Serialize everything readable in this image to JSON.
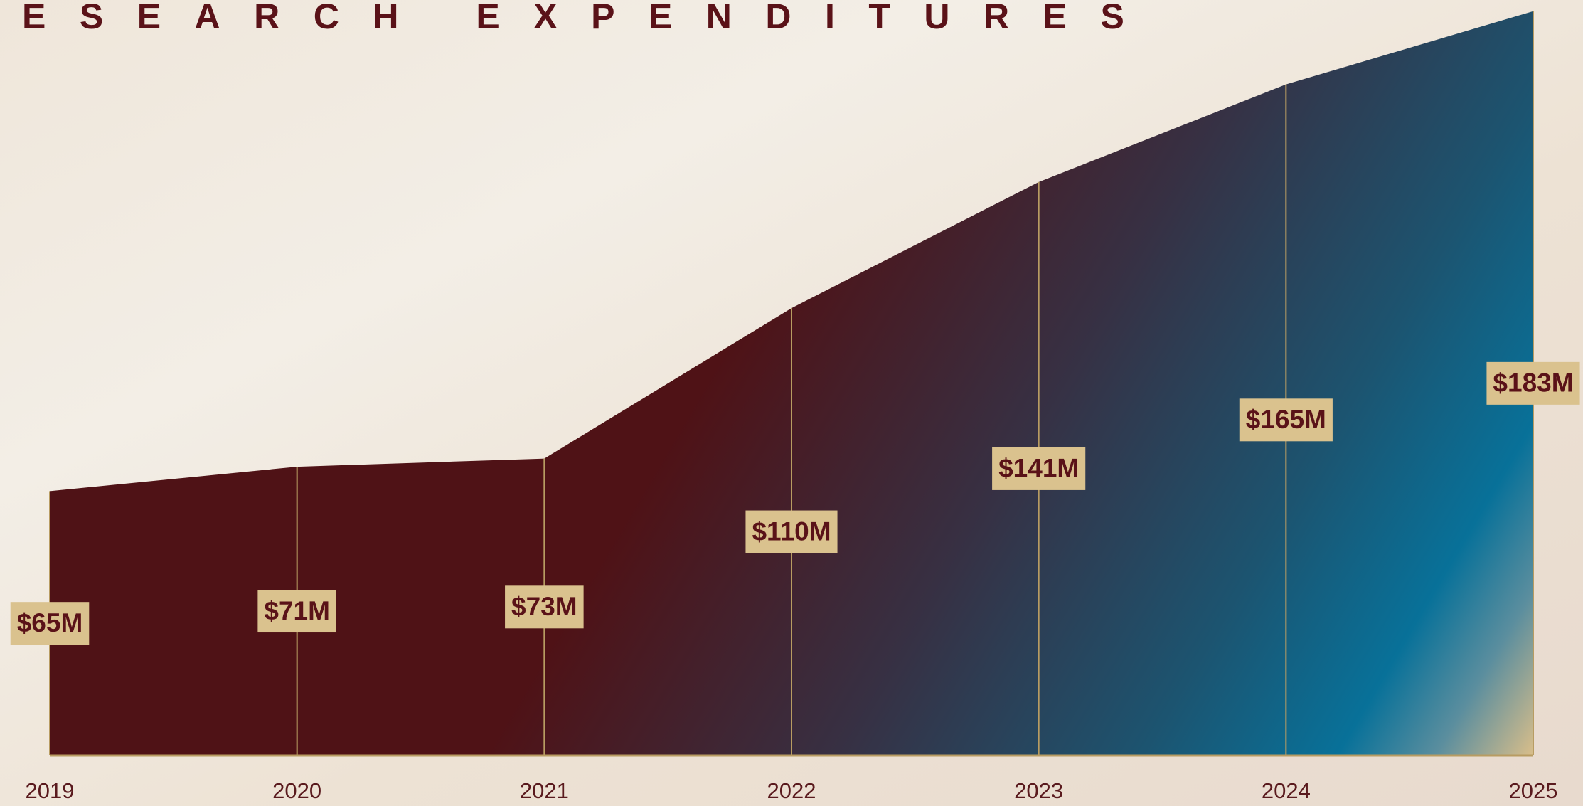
{
  "chart_data": {
    "type": "area",
    "title": "ESEARCH EXPENDITURES",
    "categories": [
      "2019",
      "2020",
      "2021",
      "2022",
      "2023",
      "2024",
      "2025"
    ],
    "values": [
      65,
      71,
      73,
      110,
      141,
      165,
      183
    ],
    "value_labels": [
      "$65M",
      "$71M",
      "$73M",
      "$110M",
      "$141M",
      "$165M",
      "$183M"
    ],
    "ylim": [
      0,
      184
    ]
  }
}
